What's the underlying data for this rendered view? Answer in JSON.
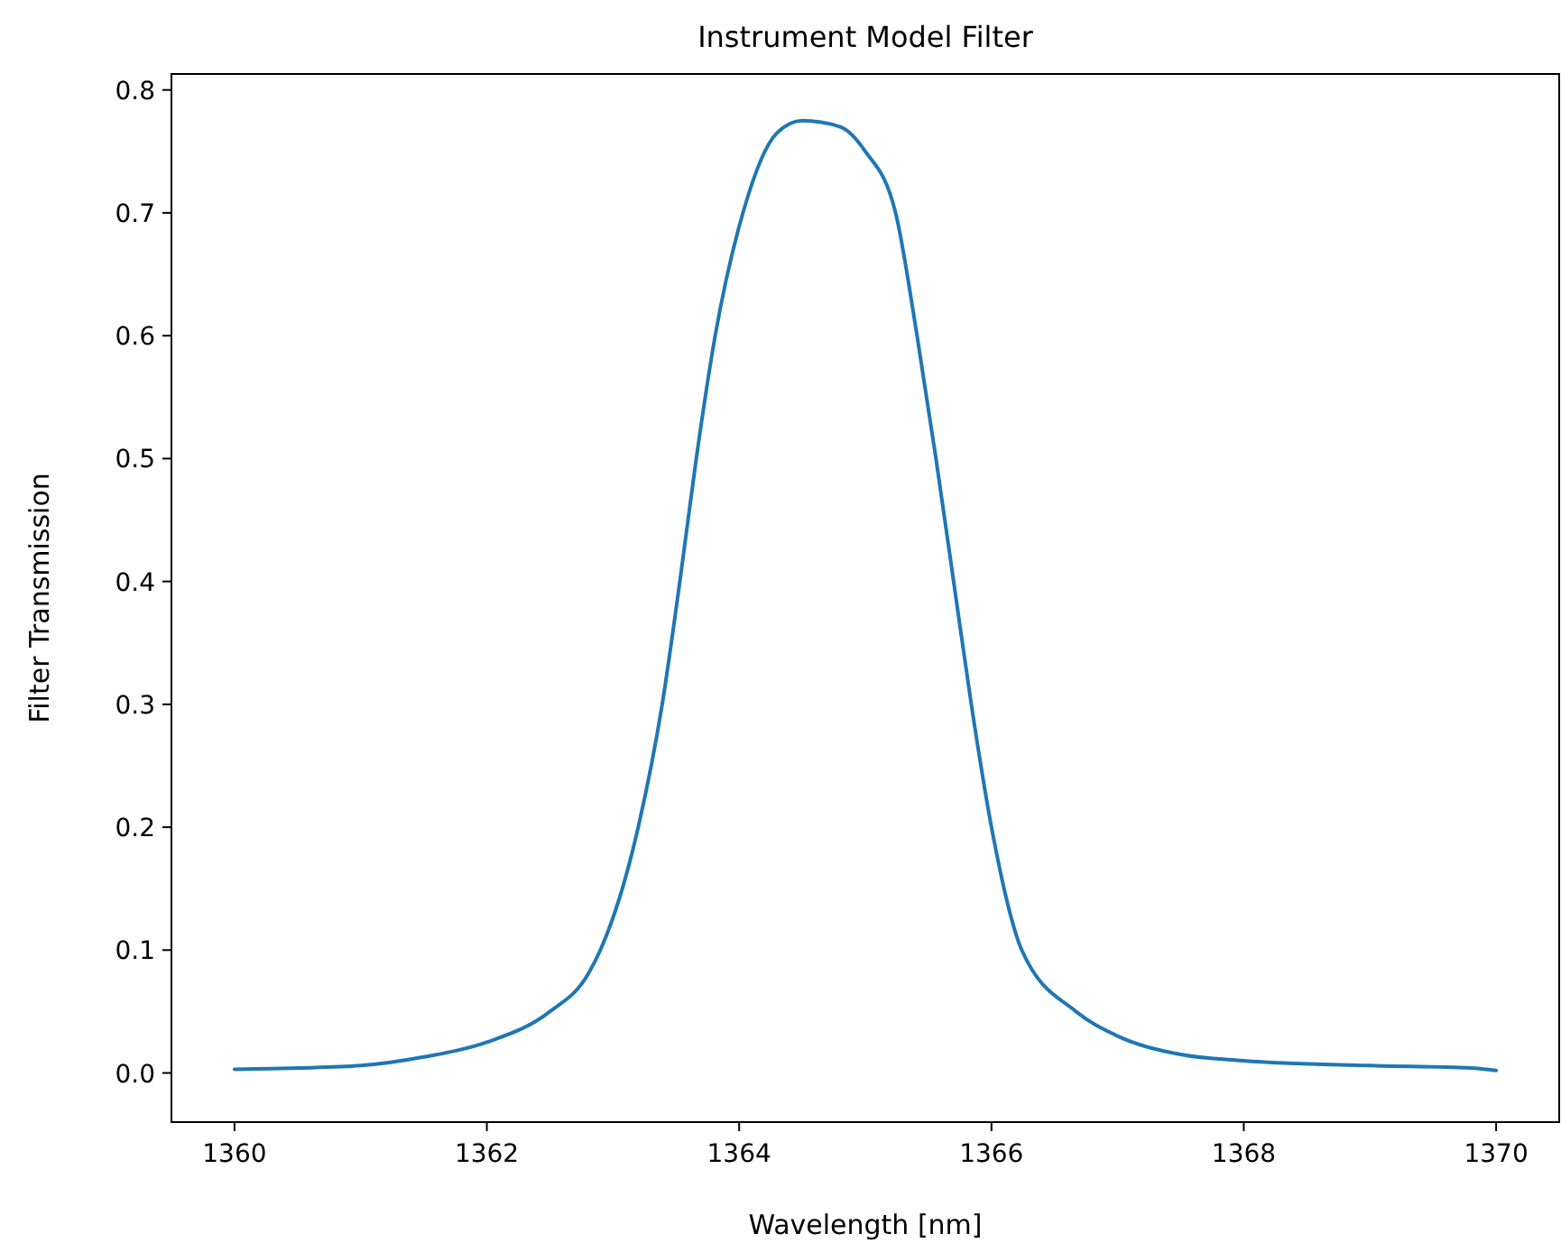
{
  "chart_data": {
    "type": "line",
    "title": "Instrument Model Filter",
    "xlabel": "Wavelength [nm]",
    "ylabel": "Filter Transmission",
    "x": [
      1360,
      1360.5,
      1361,
      1361.5,
      1362,
      1362.5,
      1362.8,
      1362.9,
      1363.2,
      1363.39,
      1363.53,
      1363.66,
      1363.81,
      1364.03,
      1364.3,
      1364.5,
      1364.8,
      1365,
      1365.24,
      1365.41,
      1365.56,
      1365.7,
      1365.84,
      1366,
      1366.24,
      1366.67,
      1367,
      1367.5,
      1368,
      1369,
      1369.8,
      1370
    ],
    "series": [
      {
        "color": "#1f77b4",
        "values": [
          0.003,
          0.004,
          0.006,
          0.013,
          0.025,
          0.05,
          0.08,
          0.1,
          0.2,
          0.3,
          0.4,
          0.5,
          0.6,
          0.7,
          0.765,
          0.775,
          0.77,
          0.75,
          0.7,
          0.6,
          0.5,
          0.4,
          0.3,
          0.2,
          0.1,
          0.05,
          0.03,
          0.015,
          0.01,
          0.006,
          0.004,
          0.002
        ]
      }
    ],
    "xlim": [
      1359.5,
      1370.5
    ],
    "ylim": [
      -0.04,
      0.813
    ],
    "xticks": [
      1360,
      1362,
      1364,
      1366,
      1368,
      1370
    ],
    "yticks": [
      {
        "value": 0,
        "label": "0.0"
      },
      0.1,
      0.2,
      0.3,
      0.4,
      0.5,
      0.6,
      0.7,
      0.8
    ],
    "grid": false,
    "marker": "none",
    "line_style": "solid"
  }
}
